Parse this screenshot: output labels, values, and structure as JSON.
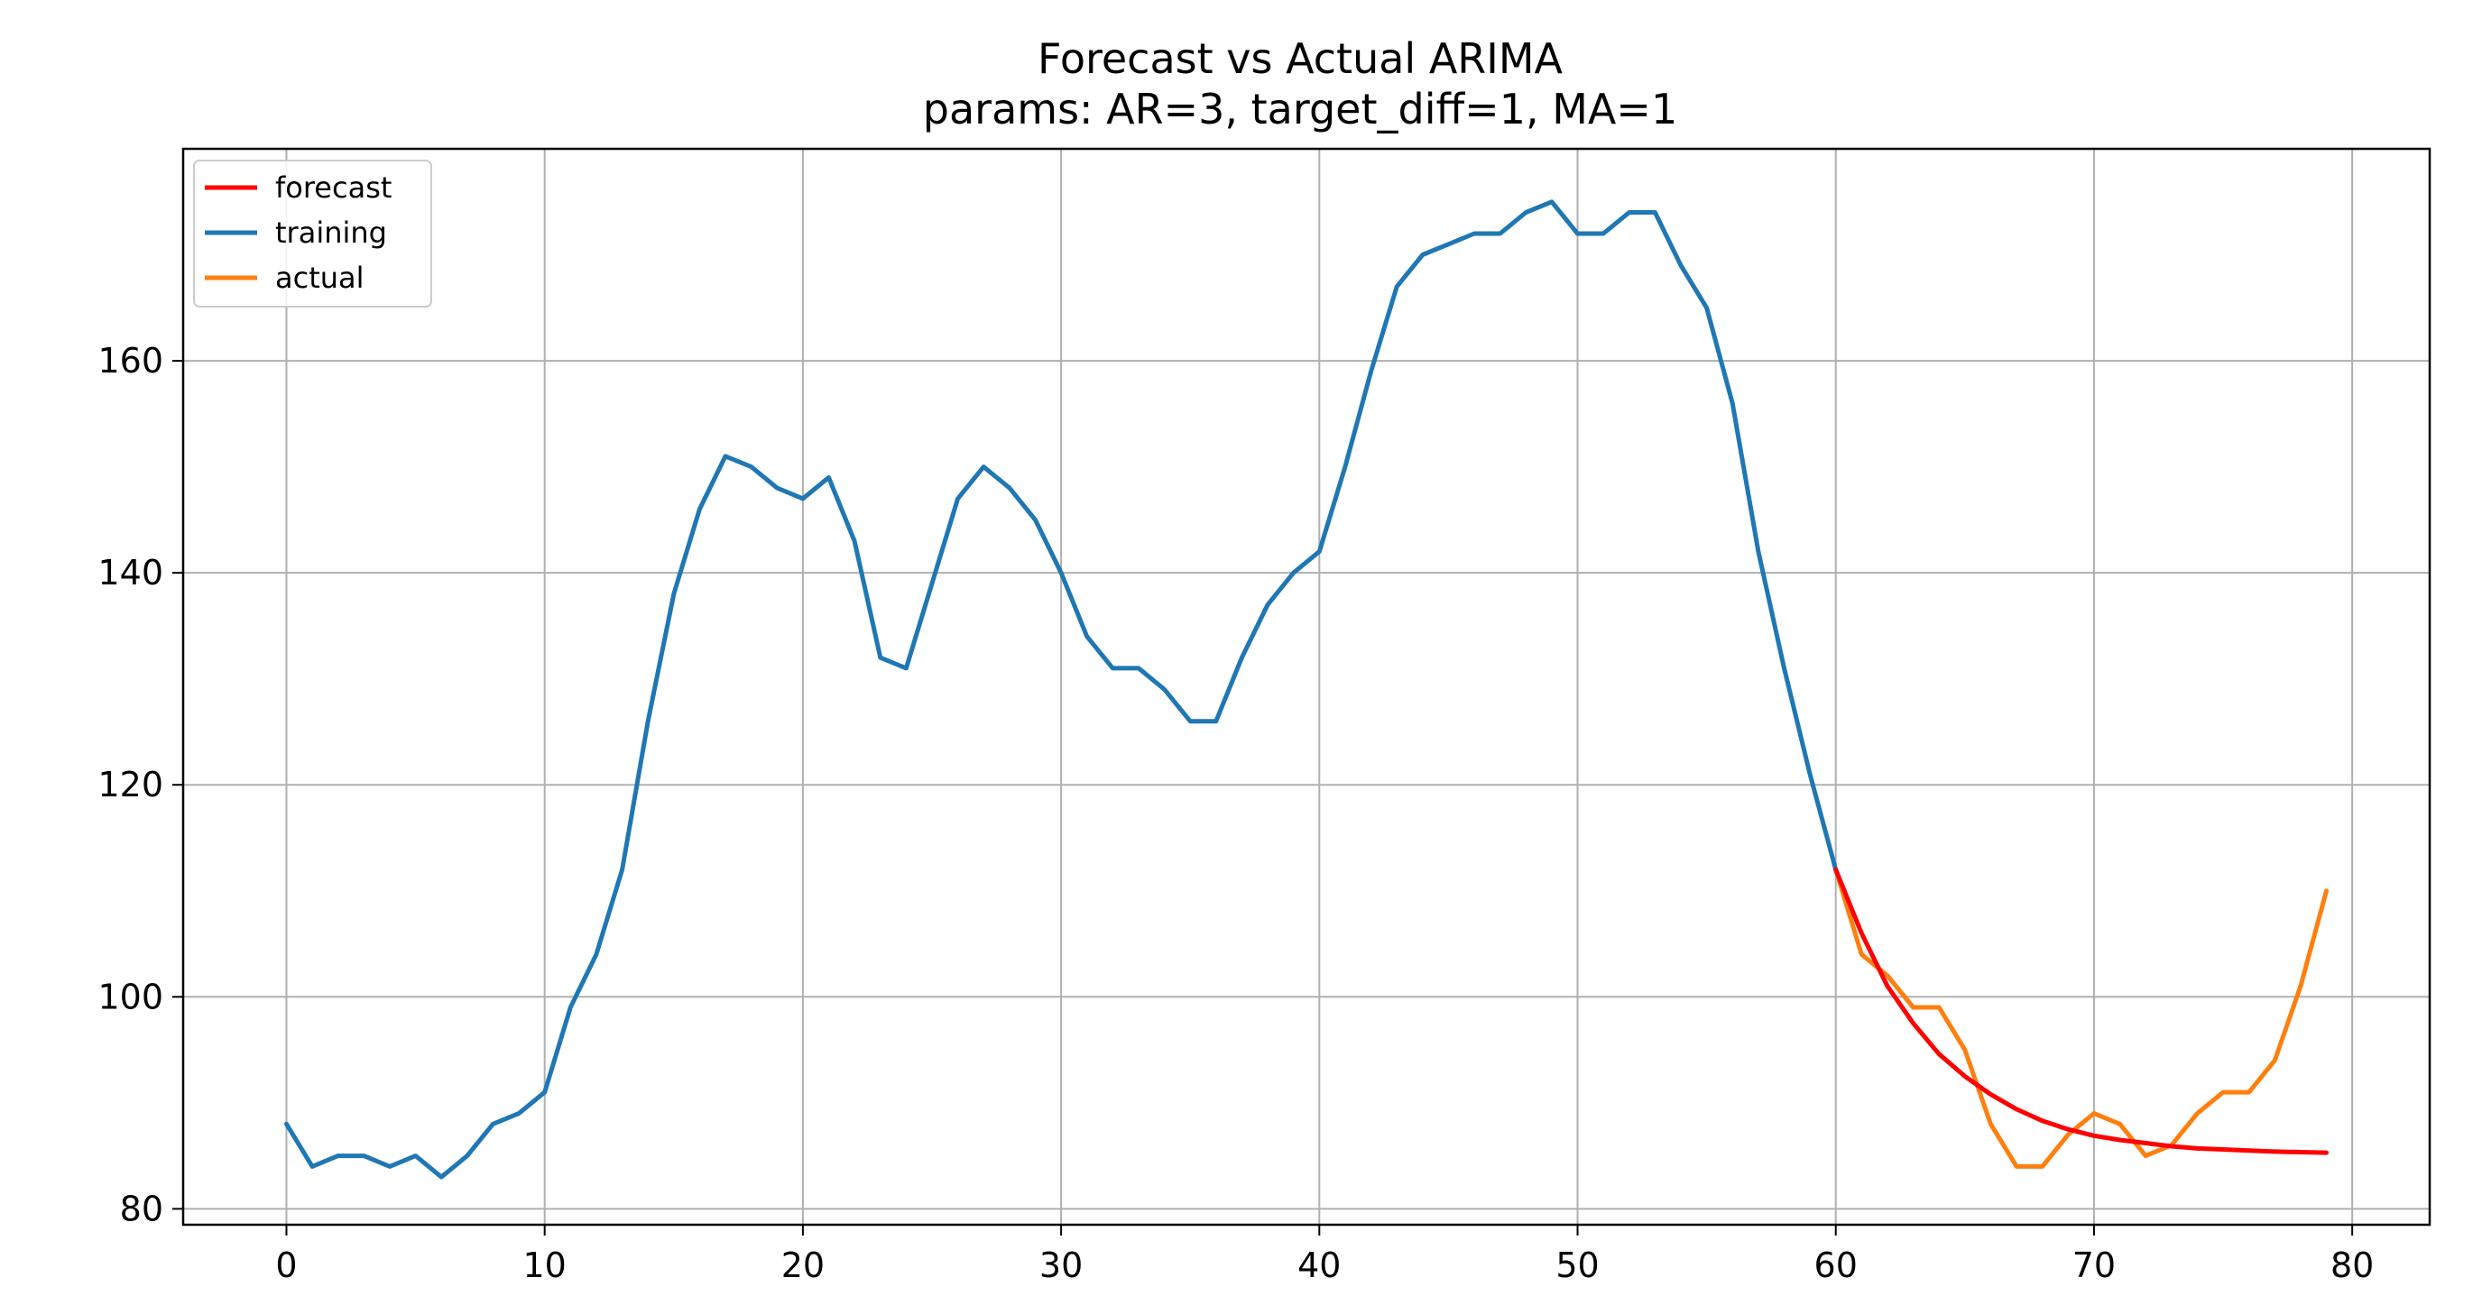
{
  "chart_data": {
    "type": "line",
    "title": "Forecast vs Actual ARIMA",
    "subtitle": "params: AR=3, target_diff=1, MA=1",
    "xlabel": "",
    "ylabel": "",
    "xlim": [
      -4,
      83
    ],
    "ylim": [
      78.5,
      180
    ],
    "x_ticks": [
      0,
      10,
      20,
      30,
      40,
      50,
      60,
      70,
      80
    ],
    "y_ticks": [
      80,
      100,
      120,
      140,
      160
    ],
    "grid": true,
    "legend_position": "top-left",
    "series": [
      {
        "name": "forecast",
        "color": "#ff0000",
        "x": [
          60,
          61,
          62,
          63,
          64,
          65,
          66,
          67,
          68,
          69,
          70,
          71,
          72,
          73,
          74,
          75,
          76,
          77,
          78,
          79
        ],
        "values": [
          112,
          106,
          101,
          97.5,
          94.6,
          92.5,
          90.8,
          89.4,
          88.3,
          87.5,
          86.9,
          86.5,
          86.2,
          85.9,
          85.7,
          85.6,
          85.5,
          85.4,
          85.35,
          85.3
        ]
      },
      {
        "name": "training",
        "color": "#1f77b4",
        "x": [
          0,
          1,
          2,
          3,
          4,
          5,
          6,
          7,
          8,
          9,
          10,
          11,
          12,
          13,
          14,
          15,
          16,
          17,
          18,
          19,
          20,
          21,
          22,
          23,
          24,
          25,
          26,
          27,
          28,
          29,
          30,
          31,
          32,
          33,
          34,
          35,
          36,
          37,
          38,
          39,
          40,
          41,
          42,
          43,
          44,
          45,
          46,
          47,
          48,
          49,
          50,
          51,
          52,
          53,
          54,
          55,
          56,
          57,
          58,
          59,
          60
        ],
        "values": [
          88,
          84,
          85,
          85,
          84,
          85,
          83,
          85,
          88,
          89,
          91,
          99,
          104,
          112,
          126,
          138,
          146,
          151,
          150,
          148,
          147,
          149,
          143,
          132,
          131,
          139,
          147,
          150,
          148,
          145,
          140,
          134,
          131,
          131,
          129,
          126,
          126,
          132,
          137,
          140,
          142,
          150,
          159,
          167,
          170,
          171,
          172,
          172,
          174,
          175,
          172,
          172,
          174,
          174,
          169,
          165,
          156,
          142,
          131,
          121,
          112
        ]
      },
      {
        "name": "actual",
        "color": "#ff7f0e",
        "x": [
          60,
          61,
          62,
          63,
          64,
          65,
          66,
          67,
          68,
          69,
          70,
          71,
          72,
          73,
          74,
          75,
          76,
          77,
          78,
          79
        ],
        "values": [
          112,
          104,
          102,
          99,
          99,
          95,
          88,
          84,
          84,
          87,
          89,
          88,
          85,
          86,
          89,
          91,
          91,
          94,
          101,
          110
        ]
      }
    ]
  }
}
